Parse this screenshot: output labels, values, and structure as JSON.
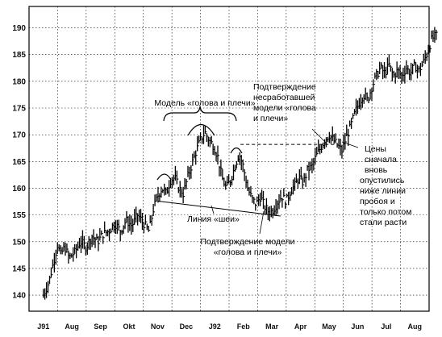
{
  "chart_data": {
    "type": "ohlc",
    "y_ticks": [
      140,
      145,
      150,
      155,
      160,
      165,
      170,
      175,
      180,
      185,
      190
    ],
    "ylim": [
      137,
      194
    ],
    "x_months": [
      "J91",
      "Aug",
      "Sep",
      "Okt",
      "Nov",
      "Dec",
      "J92",
      "Feb",
      "Mar",
      "Apr",
      "May",
      "Jun",
      "Jul",
      "Aug"
    ],
    "grid": true,
    "series": [
      {
        "t": 0.0,
        "v": 140.0
      },
      {
        "t": 0.2,
        "v": 142.5
      },
      {
        "t": 0.35,
        "v": 146.0
      },
      {
        "t": 0.5,
        "v": 149.5
      },
      {
        "t": 0.6,
        "v": 147.5
      },
      {
        "t": 0.75,
        "v": 149.0
      },
      {
        "t": 0.9,
        "v": 147.0
      },
      {
        "t": 1.1,
        "v": 148.0
      },
      {
        "t": 1.3,
        "v": 150.0
      },
      {
        "t": 1.5,
        "v": 149.0
      },
      {
        "t": 1.7,
        "v": 151.0
      },
      {
        "t": 1.9,
        "v": 150.0
      },
      {
        "t": 2.1,
        "v": 151.5
      },
      {
        "t": 2.3,
        "v": 152.0
      },
      {
        "t": 2.5,
        "v": 153.5
      },
      {
        "t": 2.7,
        "v": 152.0
      },
      {
        "t": 2.9,
        "v": 154.0
      },
      {
        "t": 3.1,
        "v": 153.0
      },
      {
        "t": 3.3,
        "v": 155.0
      },
      {
        "t": 3.5,
        "v": 153.5
      },
      {
        "t": 3.7,
        "v": 152.0
      },
      {
        "t": 3.85,
        "v": 156.0
      },
      {
        "t": 4.0,
        "v": 158.5
      },
      {
        "t": 4.15,
        "v": 160.0
      },
      {
        "t": 4.3,
        "v": 159.0
      },
      {
        "t": 4.45,
        "v": 161.5
      },
      {
        "t": 4.6,
        "v": 162.0
      },
      {
        "t": 4.75,
        "v": 160.0
      },
      {
        "t": 4.9,
        "v": 159.0
      },
      {
        "t": 5.05,
        "v": 162.0
      },
      {
        "t": 5.2,
        "v": 164.5
      },
      {
        "t": 5.35,
        "v": 167.0
      },
      {
        "t": 5.5,
        "v": 169.0
      },
      {
        "t": 5.65,
        "v": 170.5
      },
      {
        "t": 5.8,
        "v": 169.0
      },
      {
        "t": 5.95,
        "v": 168.0
      },
      {
        "t": 6.1,
        "v": 166.0
      },
      {
        "t": 6.25,
        "v": 162.0
      },
      {
        "t": 6.4,
        "v": 160.0
      },
      {
        "t": 6.55,
        "v": 161.5
      },
      {
        "t": 6.7,
        "v": 164.0
      },
      {
        "t": 6.85,
        "v": 166.5
      },
      {
        "t": 7.0,
        "v": 164.0
      },
      {
        "t": 7.15,
        "v": 160.0
      },
      {
        "t": 7.3,
        "v": 158.0
      },
      {
        "t": 7.45,
        "v": 157.0
      },
      {
        "t": 7.6,
        "v": 158.5
      },
      {
        "t": 7.75,
        "v": 156.5
      },
      {
        "t": 7.9,
        "v": 155.5
      },
      {
        "t": 8.05,
        "v": 156.0
      },
      {
        "t": 8.2,
        "v": 157.5
      },
      {
        "t": 8.35,
        "v": 158.5
      },
      {
        "t": 8.5,
        "v": 157.5
      },
      {
        "t": 8.65,
        "v": 159.5
      },
      {
        "t": 8.8,
        "v": 160.5
      },
      {
        "t": 8.95,
        "v": 162.0
      },
      {
        "t": 9.1,
        "v": 161.0
      },
      {
        "t": 9.25,
        "v": 163.5
      },
      {
        "t": 9.4,
        "v": 164.0
      },
      {
        "t": 9.55,
        "v": 166.0
      },
      {
        "t": 9.7,
        "v": 167.5
      },
      {
        "t": 9.85,
        "v": 169.0
      },
      {
        "t": 10.0,
        "v": 170.0
      },
      {
        "t": 10.15,
        "v": 169.0
      },
      {
        "t": 10.3,
        "v": 168.0
      },
      {
        "t": 10.45,
        "v": 167.0
      },
      {
        "t": 10.6,
        "v": 169.5
      },
      {
        "t": 10.75,
        "v": 171.5
      },
      {
        "t": 10.9,
        "v": 174.0
      },
      {
        "t": 11.05,
        "v": 176.0
      },
      {
        "t": 11.2,
        "v": 177.5
      },
      {
        "t": 11.35,
        "v": 176.5
      },
      {
        "t": 11.5,
        "v": 179.0
      },
      {
        "t": 11.65,
        "v": 181.0
      },
      {
        "t": 11.8,
        "v": 182.5
      },
      {
        "t": 11.95,
        "v": 181.5
      },
      {
        "t": 12.1,
        "v": 183.0
      },
      {
        "t": 12.25,
        "v": 181.0
      },
      {
        "t": 12.4,
        "v": 182.0
      },
      {
        "t": 12.55,
        "v": 181.0
      },
      {
        "t": 12.7,
        "v": 182.5
      },
      {
        "t": 12.85,
        "v": 181.5
      },
      {
        "t": 13.0,
        "v": 183.0
      },
      {
        "t": 13.15,
        "v": 182.0
      },
      {
        "t": 13.3,
        "v": 183.5
      },
      {
        "t": 13.45,
        "v": 185.5
      },
      {
        "t": 13.6,
        "v": 188.0
      },
      {
        "t": 13.75,
        "v": 188.5
      }
    ],
    "annotations": {
      "pattern_label": "Модель «голова и плечи»",
      "neckline_label": "Линия «шеи»",
      "confirmation_label": [
        "Подтверждение модели",
        "«голова и плечи»"
      ],
      "failed_confirmation_label": [
        "Подтверждение",
        "несработавшей",
        "модели «голова",
        "и плечи»"
      ],
      "prices_label": [
        "Цены",
        "сначала",
        "вновь",
        "опустились",
        "ниже линии",
        "пробоя и",
        "только потом",
        "стали расти"
      ]
    }
  }
}
